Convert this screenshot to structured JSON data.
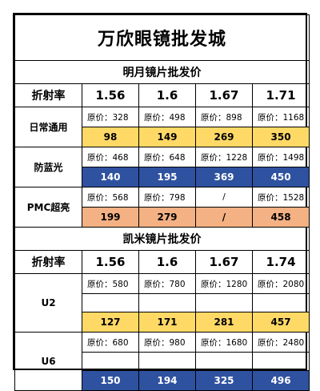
{
  "title": "万欣眼镜批发城",
  "colors": {
    "yellow": "#ffd966",
    "blue": "#2f52a0",
    "orange": "#f4b183"
  },
  "mingyue": {
    "section_title": "明月镜片批发价",
    "header": [
      "折射率",
      "1.56",
      "1.6",
      "1.67",
      "1.71"
    ],
    "rows": [
      {
        "name": "日常通用",
        "orig": [
          "原价：328",
          "原价：498",
          "原价：898",
          "原价：1168"
        ],
        "price": [
          "98",
          "149",
          "269",
          "350"
        ],
        "color": "yellow"
      },
      {
        "name": "防蓝光",
        "orig": [
          "原价：468",
          "原价：648",
          "原价：1228",
          "原价：1498"
        ],
        "price": [
          "140",
          "195",
          "369",
          "450"
        ],
        "color": "blue"
      },
      {
        "name": "PMC超亮",
        "orig": [
          "原价：568",
          "原价：798",
          "/",
          "原价：1528"
        ],
        "price": [
          "199",
          "279",
          "/",
          "458"
        ],
        "color": "orange"
      }
    ]
  },
  "kaimi": {
    "section_title": "凯米镜片批发价",
    "header": [
      "折射率",
      "1.56",
      "1.6",
      "1.67",
      "1.74"
    ],
    "rows": [
      {
        "name": "U2",
        "orig": [
          "原价：580",
          "原价：780",
          "原价：1280",
          "原价：2080"
        ],
        "price": [
          "127",
          "171",
          "281",
          "457"
        ],
        "color": "yellow"
      },
      {
        "name": "U6",
        "orig": [
          "原价：680",
          "原价：980",
          "原价：1680",
          "原价：2480"
        ],
        "price": [
          "150",
          "194",
          "325",
          "496"
        ],
        "color": "blue"
      }
    ]
  }
}
